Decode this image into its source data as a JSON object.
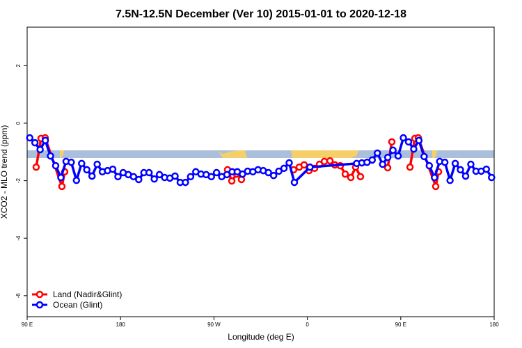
{
  "chart_data": {
    "type": "line",
    "title": "7.5N-12.5N December (Ver 10)   2015-01-01 to 2020-12-18",
    "x_label": "Longitude (deg E)",
    "y_label": "XCO2 - MLO trend (ppm)",
    "xlim": [
      90,
      540
    ],
    "ylim": [
      -6.73,
      3.34
    ],
    "xticks": [
      {
        "value": 90,
        "label": "90 E"
      },
      180,
      {
        "value": 270,
        "label": "90 W"
      },
      {
        "value": 360,
        "label": "0"
      },
      {
        "value": 450,
        "label": "90 E"
      },
      {
        "value": 540,
        "label": "180"
      }
    ],
    "yticks": [
      -6,
      -4,
      -2,
      0,
      2
    ],
    "legend": "bottom-left",
    "series": [
      {
        "name": "Land (Nadir&Glint)",
        "color": "#ff0000",
        "x": [
          98.7,
          103.4,
          107.4,
          123.5,
          126.2,
          200,
          283.1,
          287.2,
          291.9,
          296.5,
          320,
          346.8,
          352.2,
          356.9,
          361.6,
          367,
          371.7,
          376.4,
          381.8,
          386.5,
          391.8,
          396.5,
          401.9,
          406.5,
          411.2,
          425,
          437.4,
          441.4,
          450,
          458.9,
          463.6,
          466.9,
          483.7,
          486.4
        ],
        "values": [
          -1.53,
          -0.53,
          -0.51,
          -2.2,
          -1.69,
          null,
          -1.62,
          -2.01,
          -1.77,
          -1.96,
          null,
          -1.62,
          -1.53,
          -1.45,
          -1.65,
          -1.57,
          -1.43,
          -1.33,
          -1.31,
          -1.45,
          -1.48,
          -1.77,
          -1.89,
          -1.53,
          -1.86,
          null,
          -1.55,
          -0.65,
          null,
          -1.53,
          -0.53,
          -0.51,
          -2.2,
          -1.69
        ]
      },
      {
        "name": "Ocean (Glint)",
        "color": "#0000ff",
        "x": [
          92.5,
          97.5,
          102.5,
          107.5,
          112.5,
          117.5,
          122.5,
          127.5,
          132.5,
          137.5,
          142.5,
          147.5,
          152.5,
          157.5,
          162.5,
          167.5,
          172.5,
          177.5,
          182.5,
          187.5,
          192.5,
          197.5,
          202.5,
          207.5,
          212.5,
          217.5,
          222.5,
          227.5,
          232.5,
          237.5,
          242.5,
          247.5,
          252.5,
          257.5,
          262.5,
          267.5,
          272.5,
          277.5,
          282.5,
          287.5,
          292.5,
          297.5,
          302.5,
          307.5,
          312.5,
          317.5,
          322.5,
          327.5,
          332.5,
          337.5,
          342.5,
          347.5,
          362.5,
          407.5,
          412.5,
          417.5,
          422.5,
          427.5,
          432.5,
          437.5,
          442.5,
          447.5,
          452.5,
          457.5,
          462.5,
          467.5,
          472.5,
          477.5,
          482.5,
          487.5,
          492.5,
          497.5,
          502.5,
          507.5,
          512.5,
          517.5,
          522.5,
          527.5,
          532.5,
          537.5
        ],
        "values": [
          -0.51,
          -0.68,
          -0.92,
          -0.6,
          -1.14,
          -1.48,
          -1.89,
          -1.33,
          -1.36,
          -1.99,
          -1.4,
          -1.62,
          -1.84,
          -1.43,
          -1.69,
          -1.65,
          -1.6,
          -1.86,
          -1.72,
          -1.79,
          -1.86,
          -1.96,
          -1.72,
          -1.72,
          -1.94,
          -1.79,
          -1.89,
          -1.91,
          -1.84,
          -2.06,
          -2.06,
          -1.86,
          -1.69,
          -1.77,
          -1.79,
          -1.86,
          -1.72,
          -1.86,
          -1.79,
          -1.69,
          -1.69,
          -1.77,
          -1.67,
          -1.69,
          -1.62,
          -1.65,
          -1.72,
          -1.82,
          -1.67,
          -1.57,
          -1.38,
          -2.06,
          -1.53,
          -1.4,
          -1.38,
          -1.36,
          -1.28,
          -1.04,
          -1.43,
          -1.19,
          -0.94,
          -1.14,
          -0.51,
          -0.65,
          -0.9,
          -0.6,
          -1.16,
          -1.48,
          -1.89,
          -1.33,
          -1.36,
          -1.99,
          -1.4,
          -1.62,
          -1.84,
          -1.43,
          -1.67,
          -1.67,
          -1.6,
          -1.89
        ]
      }
    ]
  }
}
